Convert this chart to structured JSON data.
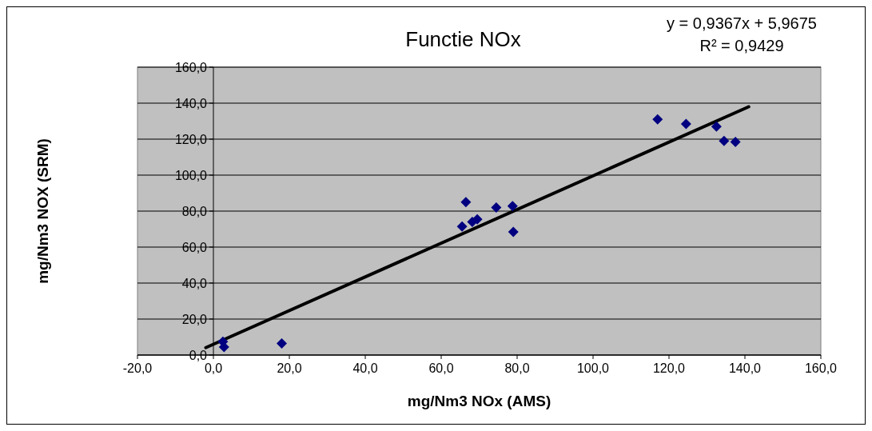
{
  "chart_data": {
    "type": "scatter",
    "title": "Functie NOx",
    "xlabel": "mg/Nm3 NOx (AMS)",
    "ylabel": "mg/Nm3 NOX (SRM)",
    "annotations": [
      "y = 0,9367x + 5,9675",
      "R² = 0,9429"
    ],
    "xlim": [
      -20,
      160
    ],
    "ylim": [
      0,
      160
    ],
    "xticks": [
      {
        "value": -20,
        "label": "-20,0"
      },
      {
        "value": 0,
        "label": "0,0"
      },
      {
        "value": 20,
        "label": "20,0"
      },
      {
        "value": 40,
        "label": "40,0"
      },
      {
        "value": 60,
        "label": "60,0"
      },
      {
        "value": 80,
        "label": "80,0"
      },
      {
        "value": 100,
        "label": "100,0"
      },
      {
        "value": 120,
        "label": "120,0"
      },
      {
        "value": 140,
        "label": "140,0"
      },
      {
        "value": 160,
        "label": "160,0"
      }
    ],
    "yticks": [
      {
        "value": 0,
        "label": "0,0"
      },
      {
        "value": 20,
        "label": "20,0"
      },
      {
        "value": 40,
        "label": "40,0"
      },
      {
        "value": 60,
        "label": "60,0"
      },
      {
        "value": 80,
        "label": "80,0"
      },
      {
        "value": 100,
        "label": "100,0"
      },
      {
        "value": 120,
        "label": "120,0"
      },
      {
        "value": 140,
        "label": "140,0"
      },
      {
        "value": 160,
        "label": "160,0"
      }
    ],
    "grid": "y",
    "marker": "diamond",
    "series": [
      {
        "color": "#000080",
        "x": [
          2.5,
          2.8,
          18,
          65.5,
          66.5,
          68.2,
          69.5,
          74.5,
          78.8,
          79,
          117,
          124.5,
          132.5,
          134.5,
          137.5
        ],
        "values": [
          7.5,
          4.5,
          6.5,
          71.5,
          85,
          74,
          75.5,
          82,
          82.8,
          68.5,
          131,
          128.5,
          127,
          119,
          118.5
        ]
      },
      {
        "type": "line",
        "color": "#000000",
        "x": [
          -2,
          141
        ],
        "values": [
          4.1,
          138.0
        ],
        "marker": "none"
      }
    ]
  }
}
